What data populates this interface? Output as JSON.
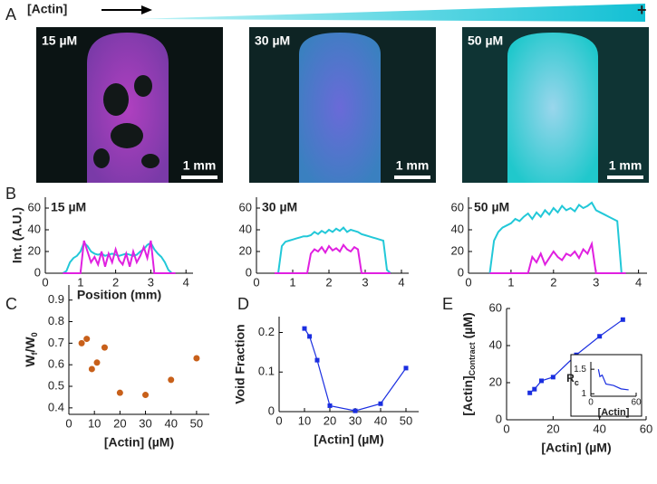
{
  "figure": {
    "panels": [
      "A",
      "B",
      "C",
      "D",
      "E"
    ],
    "gradient_label": "[Actin]",
    "gradient_end": "+",
    "images": [
      {
        "label": "15 µM",
        "scale": "1 mm"
      },
      {
        "label": "30 µM",
        "scale": "1 mm"
      },
      {
        "label": "50 µM",
        "scale": "1 mm"
      }
    ]
  },
  "chart_data": [
    {
      "type": "line",
      "annotation": "15 µM",
      "ylabel": "Int. (A.U.)",
      "xlabel": "Position (mm)",
      "xlim": [
        0,
        4.2
      ],
      "xticks": [
        0,
        1,
        2,
        3,
        4
      ],
      "ylim": [
        0,
        70
      ],
      "yticks": [
        0,
        20,
        40,
        60
      ],
      "marker": "none",
      "x": [
        0.5,
        0.6,
        0.7,
        0.8,
        0.9,
        1.0,
        1.1,
        1.2,
        1.3,
        1.4,
        1.5,
        1.6,
        1.7,
        1.8,
        1.9,
        2.0,
        2.1,
        2.2,
        2.3,
        2.4,
        2.5,
        2.6,
        2.7,
        2.8,
        2.9,
        3.0,
        3.1,
        3.2,
        3.3,
        3.4,
        3.5,
        3.6,
        3.7
      ],
      "series": [
        {
          "color": "#22c8d8",
          "values": [
            0,
            2,
            10,
            14,
            16,
            20,
            28,
            25,
            20,
            18,
            17,
            18,
            16,
            17,
            18,
            17,
            16,
            17,
            18,
            17,
            16,
            17,
            20,
            22,
            26,
            28,
            22,
            18,
            15,
            10,
            3,
            0,
            0
          ]
        },
        {
          "color": "#e020e0",
          "values": [
            0,
            0,
            0,
            0,
            0,
            0,
            30,
            20,
            10,
            15,
            8,
            20,
            6,
            18,
            10,
            22,
            12,
            8,
            18,
            6,
            20,
            10,
            16,
            24,
            14,
            30,
            0,
            0,
            0,
            0,
            0,
            0,
            0
          ]
        }
      ]
    },
    {
      "type": "line",
      "annotation": "30 µM",
      "xlim": [
        0,
        4.2
      ],
      "xticks": [
        0,
        1,
        2,
        3,
        4
      ],
      "ylim": [
        0,
        70
      ],
      "yticks": [
        0,
        20,
        40,
        60
      ],
      "marker": "none",
      "x": [
        0.5,
        0.6,
        0.7,
        0.8,
        0.9,
        1.0,
        1.1,
        1.2,
        1.3,
        1.4,
        1.5,
        1.6,
        1.7,
        1.8,
        1.9,
        2.0,
        2.1,
        2.2,
        2.3,
        2.4,
        2.5,
        2.6,
        2.7,
        2.8,
        2.9,
        3.0,
        3.1,
        3.2,
        3.3,
        3.4,
        3.5,
        3.6,
        3.7
      ],
      "series": [
        {
          "color": "#22c8d8",
          "values": [
            0,
            0,
            25,
            29,
            30,
            31,
            32,
            33,
            34,
            34,
            35,
            38,
            36,
            39,
            37,
            40,
            38,
            41,
            39,
            42,
            38,
            40,
            39,
            38,
            36,
            35,
            34,
            33,
            32,
            31,
            30,
            3,
            0
          ]
        },
        {
          "color": "#e020e0",
          "values": [
            0,
            0,
            0,
            0,
            0,
            0,
            0,
            0,
            0,
            0,
            18,
            22,
            20,
            24,
            19,
            25,
            21,
            23,
            20,
            26,
            22,
            20,
            24,
            22,
            0,
            0,
            0,
            0,
            0,
            0,
            0,
            0,
            0
          ]
        }
      ]
    },
    {
      "type": "line",
      "annotation": "50 µM",
      "xlim": [
        0,
        4.2
      ],
      "xticks": [
        0,
        1,
        2,
        3,
        4
      ],
      "ylim": [
        0,
        70
      ],
      "yticks": [
        0,
        20,
        40,
        60
      ],
      "marker": "none",
      "x": [
        0.5,
        0.6,
        0.7,
        0.8,
        0.9,
        1.0,
        1.1,
        1.2,
        1.3,
        1.4,
        1.5,
        1.6,
        1.7,
        1.8,
        1.9,
        2.0,
        2.1,
        2.2,
        2.3,
        2.4,
        2.5,
        2.6,
        2.7,
        2.8,
        2.9,
        3.0,
        3.1,
        3.2,
        3.3,
        3.4,
        3.5,
        3.6,
        3.7
      ],
      "series": [
        {
          "color": "#22c8d8",
          "values": [
            0,
            30,
            38,
            42,
            44,
            46,
            50,
            48,
            52,
            55,
            50,
            56,
            52,
            58,
            54,
            60,
            56,
            62,
            58,
            60,
            57,
            63,
            60,
            62,
            65,
            58,
            56,
            54,
            52,
            50,
            48,
            0,
            0
          ]
        },
        {
          "color": "#e020e0",
          "values": [
            0,
            0,
            0,
            0,
            0,
            0,
            0,
            0,
            0,
            0,
            15,
            10,
            18,
            8,
            14,
            20,
            15,
            12,
            18,
            16,
            20,
            14,
            22,
            18,
            27,
            0,
            0,
            0,
            0,
            0,
            0,
            0,
            0
          ]
        }
      ]
    },
    {
      "type": "scatter",
      "ylabel": [
        {
          "text": "W"
        },
        {
          "text": "f",
          "sub": true
        },
        {
          "text": "/W"
        },
        {
          "text": "0",
          "sub": true
        }
      ],
      "xlabel": "[Actin] (µM)",
      "xlim": [
        0,
        55
      ],
      "xticks": [
        0,
        10,
        20,
        30,
        40,
        50
      ],
      "ylim": [
        0.37,
        0.97
      ],
      "yticks": [
        0.4,
        0.5,
        0.6,
        0.7,
        0.8,
        0.9
      ],
      "color": "#c8601a",
      "x": [
        5,
        7,
        9,
        11,
        14,
        20,
        30,
        40,
        50
      ],
      "values": [
        0.7,
        0.72,
        0.58,
        0.61,
        0.68,
        0.47,
        0.46,
        0.53,
        0.63
      ]
    },
    {
      "type": "line",
      "ylabel": "Void Fraction",
      "xlabel": "[Actin] (µM)",
      "xlim": [
        0,
        55
      ],
      "xticks": [
        0,
        10,
        20,
        30,
        40,
        50
      ],
      "ylim": [
        0,
        0.24
      ],
      "yticks": [
        0,
        0.1,
        0.2
      ],
      "marker": "square",
      "x": [
        10,
        12,
        15,
        20,
        30,
        40,
        50
      ],
      "series": [
        {
          "color": "#1a2ee0",
          "values": [
            0.21,
            0.19,
            0.13,
            0.015,
            0.002,
            0.02,
            0.11
          ]
        }
      ]
    },
    {
      "type": "line",
      "ylabel": [
        {
          "text": "[Actin]"
        },
        {
          "text": "Contract",
          "sub": true
        },
        {
          "text": " (µM)"
        }
      ],
      "xlabel": "[Actin] (µM)",
      "xlim": [
        0,
        60
      ],
      "xticks": [
        0,
        20,
        40,
        60
      ],
      "ylim": [
        0,
        60
      ],
      "yticks": [
        0,
        20,
        40,
        60
      ],
      "marker": "square",
      "x": [
        10,
        12,
        15,
        20,
        30,
        40,
        50
      ],
      "series": [
        {
          "color": "#1a2ee0",
          "values": [
            14.5,
            16.5,
            21,
            23,
            35,
            45,
            54
          ]
        }
      ]
    },
    {
      "type": "line",
      "ylabel": [
        {
          "text": "R"
        },
        {
          "text": "c",
          "sub": true
        }
      ],
      "xlabel": "[Actin]",
      "xlim": [
        0,
        60
      ],
      "xticks": [
        0,
        60
      ],
      "ylim": [
        0.95,
        1.65
      ],
      "yticks": [
        1,
        1.5
      ],
      "marker": "none",
      "x": [
        10,
        12,
        15,
        20,
        30,
        40,
        50
      ],
      "series": [
        {
          "color": "#1a2ee0",
          "values": [
            1.5,
            1.35,
            1.38,
            1.2,
            1.17,
            1.1,
            1.08
          ]
        }
      ]
    }
  ]
}
